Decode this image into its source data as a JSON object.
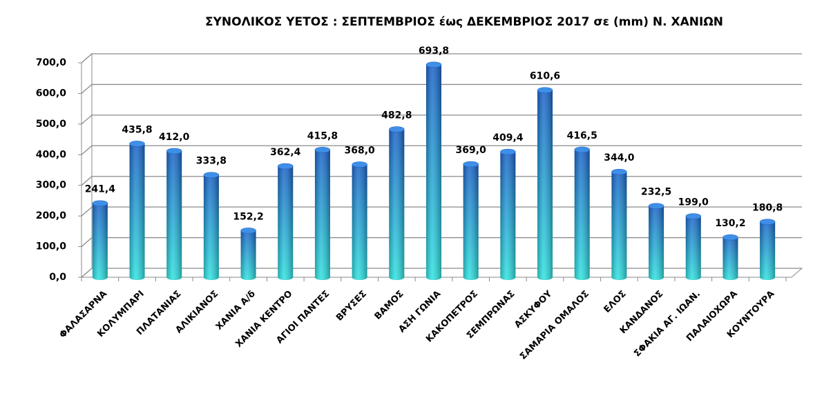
{
  "chart_data": {
    "type": "bar",
    "title": "ΣΥΝΟΛΙΚΟΣ ΥΕΤΟΣ :  ΣΕΠΤΕΜΒΡΙΟΣ έως ΔΕΚΕΜΒΡΙΟΣ 2017 σε (mm) Ν. ΧΑΝΙΩΝ",
    "categories": [
      "ΦΑΛΑΣΑΡΝΑ",
      "ΚΟΛΥΜΠΑΡΙ",
      "ΠΛΑΤΑΝΙΑΣ",
      "ΑΛΙΚΙΑΝΟΣ",
      "ΧΑΝΙΑ  Α/δ",
      "ΧΑΝΙΑ ΚΕΝΤΡΟ",
      "ΑΓΙΟΙ ΠΑΝΤΕΣ",
      "ΒΡΥΣΕΣ",
      "ΒΑΜΟΣ",
      "ΑΣΗ ΓΩΝΙΑ",
      "ΚΑΚΟΠΕΤΡΟΣ",
      "ΣΕΜΠΡΩΝΑΣ",
      "ΑΣΚΥΦΟΥ",
      "ΣΑΜΑΡΙΑ ΟΜΑΛΟΣ",
      "ΕΛΟΣ",
      "ΚΑΝΔΑΝΟΣ",
      "ΣΦΑΚΙΑ ΑΓ. ΙΩΑΝ.",
      "ΠΑΛΑΙΟΧΩΡΑ",
      "ΚΟΥΝΤΟΥΡΑ"
    ],
    "values": [
      241.4,
      435.8,
      412.0,
      333.8,
      152.2,
      362.4,
      415.8,
      368.0,
      482.8,
      693.8,
      369.0,
      409.4,
      610.6,
      416.5,
      344.0,
      232.5,
      199.0,
      130.2,
      180.8
    ],
    "value_labels": [
      "241,4",
      "435,8",
      "412,0",
      "333,8",
      "152,2",
      "362,4",
      "415,8",
      "368,0",
      "482,8",
      "693,8",
      "369,0",
      "409,4",
      "610,6",
      "416,5",
      "344,0",
      "232,5",
      "199,0",
      "130,2",
      "180,8"
    ],
    "color": "#1e74d6",
    "ylim": [
      0,
      700
    ],
    "yticks": [
      {
        "value": 0,
        "label": "0,0"
      },
      {
        "value": 100,
        "label": "100,0"
      },
      {
        "value": 200,
        "label": "200,0"
      },
      {
        "value": 300,
        "label": "300,0"
      },
      {
        "value": 400,
        "label": "400,0"
      },
      {
        "value": 500,
        "label": "500,0"
      },
      {
        "value": 600,
        "label": "600,0"
      },
      {
        "value": 700,
        "label": "700,0"
      }
    ],
    "grid": true
  }
}
